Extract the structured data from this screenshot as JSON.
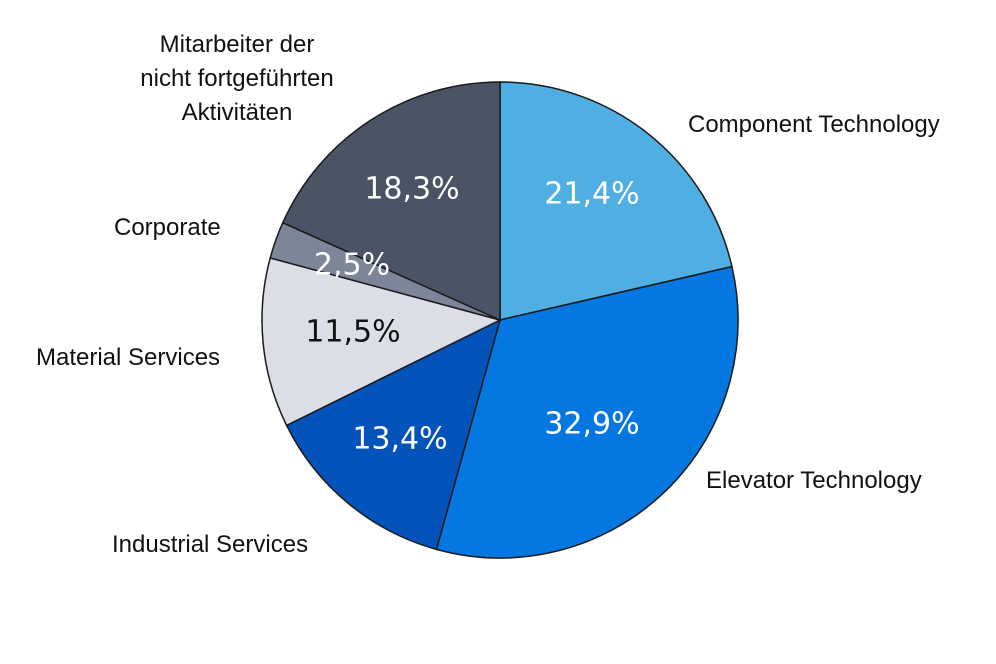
{
  "chart_data": {
    "type": "pie",
    "slices": [
      {
        "label": "Component Technology",
        "value": 21.4,
        "value_label": "21,4%",
        "color": "#4fafe3",
        "text_color": "#ffffff"
      },
      {
        "label": "Elevator Technology",
        "value": 32.9,
        "value_label": "32,9%",
        "color": "#0478e0",
        "text_color": "#ffffff"
      },
      {
        "label": "Industrial Services",
        "value": 13.4,
        "value_label": "13,4%",
        "color": "#0353bb",
        "text_color": "#ffffff"
      },
      {
        "label": "Material Services",
        "value": 11.5,
        "value_label": "11,5%",
        "color": "#dcdee7",
        "text_color": "#111111"
      },
      {
        "label": "Corporate",
        "value": 2.5,
        "value_label": "2,5%",
        "color": "#7d8599",
        "text_color": "#ffffff"
      },
      {
        "label": [
          "Mitarbeiter der",
          "nicht fortgeführten",
          "Aktivitäten"
        ],
        "value": 18.3,
        "value_label": "18,3%",
        "color": "#4b5465",
        "text_color": "#ffffff"
      }
    ]
  }
}
